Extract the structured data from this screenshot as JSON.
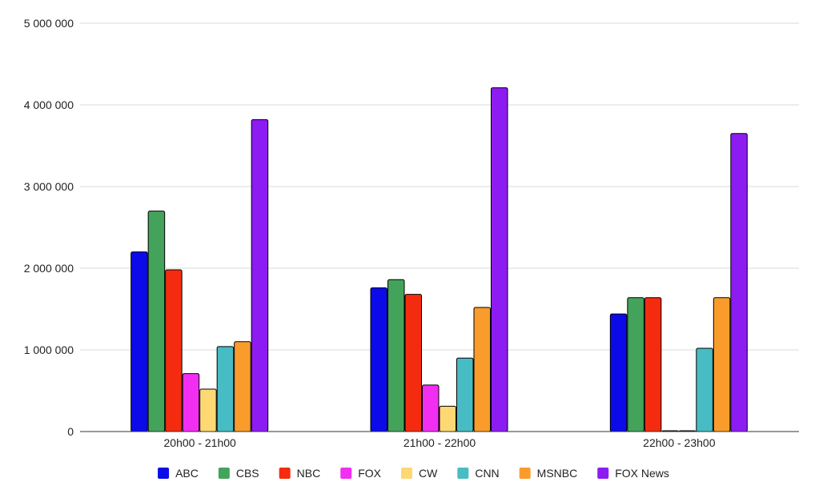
{
  "chart_data": {
    "type": "bar",
    "categories": [
      "20h00 - 21h00",
      "21h00 - 22h00",
      "22h00 - 23h00"
    ],
    "series": [
      {
        "name": "ABC",
        "color": "#0b0bea",
        "values": [
          2200000,
          1760000,
          1440000
        ]
      },
      {
        "name": "CBS",
        "color": "#43a35a",
        "values": [
          2700000,
          1860000,
          1640000
        ]
      },
      {
        "name": "NBC",
        "color": "#f52b0f",
        "values": [
          1980000,
          1680000,
          1640000
        ]
      },
      {
        "name": "FOX",
        "color": "#f22ef2",
        "values": [
          710000,
          570000,
          10000
        ]
      },
      {
        "name": "CW",
        "color": "#fdd873",
        "values": [
          520000,
          310000,
          10000
        ]
      },
      {
        "name": "CNN",
        "color": "#47bcc4",
        "values": [
          1040000,
          900000,
          1020000
        ]
      },
      {
        "name": "MSNBC",
        "color": "#f99c2c",
        "values": [
          1100000,
          1520000,
          1640000
        ]
      },
      {
        "name": "FOX News",
        "color": "#8d1cf2",
        "values": [
          3820000,
          4210000,
          3650000
        ]
      }
    ],
    "yticks": [
      "0",
      "1 000 000",
      "2 000 000",
      "3 000 000",
      "4 000 000",
      "5 000 000"
    ],
    "ylim": [
      0,
      5000000
    ],
    "grid": true,
    "legend_position": "bottom"
  }
}
